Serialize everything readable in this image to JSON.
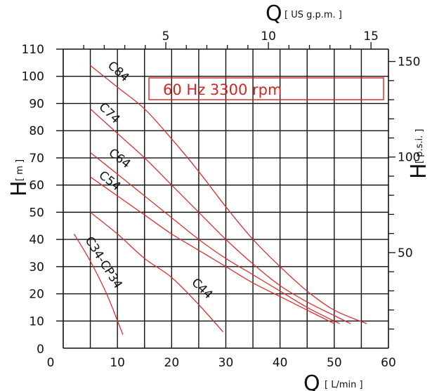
{
  "chart_data": {
    "type": "line",
    "banner": "60 Hz  3300 rpm",
    "x_axis": {
      "symbol": "Q",
      "unit": "[ L/min ]",
      "ticks": [
        0,
        10,
        20,
        30,
        40,
        50,
        60
      ],
      "xlim": [
        0,
        60
      ]
    },
    "y_axis": {
      "symbol": "H",
      "unit": "[ m ]",
      "ticks": [
        10,
        20,
        30,
        40,
        50,
        60,
        70,
        80,
        90,
        100,
        110
      ],
      "ylim": [
        0,
        110
      ]
    },
    "x2_axis": {
      "symbol": "Q",
      "unit": "[ US g.p.m. ]",
      "ticks": [
        5,
        10,
        15
      ]
    },
    "y2_axis": {
      "symbol": "H",
      "unit": "[ p.s.i. ]",
      "ticks": [
        50,
        100,
        150
      ]
    },
    "grid": true,
    "line_color": "#e03030",
    "series": [
      {
        "name": "C84",
        "points": [
          [
            5,
            104
          ],
          [
            10,
            96
          ],
          [
            15,
            88
          ],
          [
            20,
            77
          ],
          [
            25,
            65
          ],
          [
            30,
            52
          ],
          [
            35,
            40
          ],
          [
            40,
            30
          ],
          [
            45,
            21
          ],
          [
            50,
            14
          ],
          [
            56,
            9
          ]
        ]
      },
      {
        "name": "C74",
        "points": [
          [
            5,
            88
          ],
          [
            10,
            79
          ],
          [
            15,
            70
          ],
          [
            20,
            60
          ],
          [
            25,
            50
          ],
          [
            30,
            40
          ],
          [
            35,
            31
          ],
          [
            40,
            23
          ],
          [
            45,
            17
          ],
          [
            50,
            12
          ],
          [
            53,
            9
          ]
        ]
      },
      {
        "name": "C64",
        "points": [
          [
            5,
            72
          ],
          [
            10,
            64
          ],
          [
            15,
            56
          ],
          [
            20,
            48
          ],
          [
            25,
            40
          ],
          [
            30,
            33
          ],
          [
            35,
            27
          ],
          [
            40,
            21
          ],
          [
            45,
            15
          ],
          [
            51,
            9
          ]
        ]
      },
      {
        "name": "C54",
        "points": [
          [
            5,
            63
          ],
          [
            10,
            56
          ],
          [
            15,
            49
          ],
          [
            20,
            42
          ],
          [
            25,
            36
          ],
          [
            30,
            30
          ],
          [
            35,
            24
          ],
          [
            40,
            19
          ],
          [
            45,
            14
          ],
          [
            50,
            9
          ]
        ]
      },
      {
        "name": "C44",
        "points": [
          [
            5,
            50
          ],
          [
            10,
            42
          ],
          [
            15,
            33
          ],
          [
            20,
            26
          ],
          [
            25,
            16
          ],
          [
            29.5,
            6
          ]
        ]
      },
      {
        "name": "C34-CP34",
        "points": [
          [
            2,
            42
          ],
          [
            5,
            32
          ],
          [
            8,
            20
          ],
          [
            11,
            5
          ]
        ]
      }
    ]
  }
}
